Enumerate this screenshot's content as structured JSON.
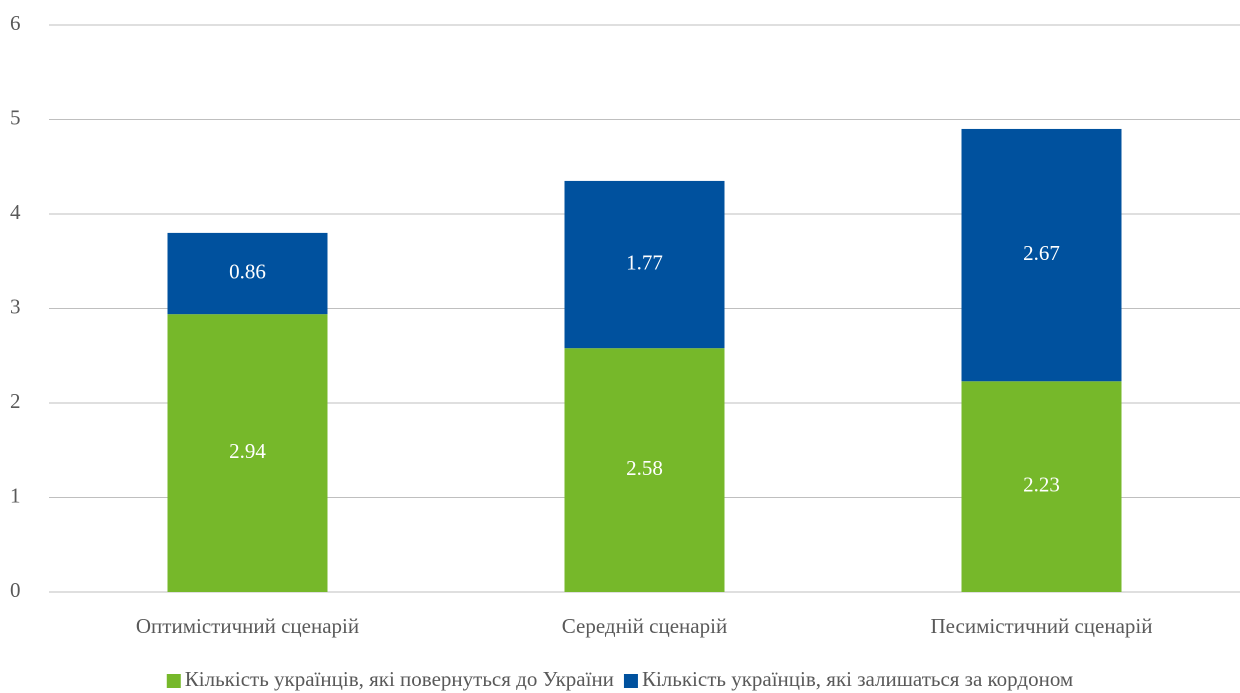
{
  "chart_data": {
    "type": "stacked_bar",
    "categories": [
      "Оптимістичний сценарій",
      "Середній сценарій",
      "Песимістичний сценарій"
    ],
    "series": [
      {
        "name": "Кількість українців, які повернуться до України",
        "color": "#76b82a",
        "values": [
          2.94,
          2.58,
          2.23
        ]
      },
      {
        "name": "Кількість українців, які залишаться за кордоном",
        "color": "#00519e",
        "values": [
          0.86,
          1.77,
          2.67
        ]
      }
    ],
    "ylim": [
      0,
      6
    ],
    "yticks": [
      0,
      1,
      2,
      3,
      4,
      5,
      6
    ],
    "grid": true,
    "legend": "bottom"
  }
}
